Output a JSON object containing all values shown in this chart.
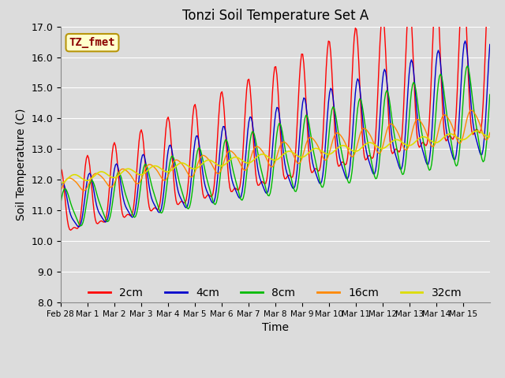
{
  "title": "Tonzi Soil Temperature Set A",
  "xlabel": "Time",
  "ylabel": "Soil Temperature (C)",
  "ylim": [
    8.0,
    17.0
  ],
  "yticks": [
    8.0,
    9.0,
    10.0,
    11.0,
    12.0,
    13.0,
    14.0,
    15.0,
    16.0,
    17.0
  ],
  "background_color": "#dcdcdc",
  "plot_bg_color": "#dcdcdc",
  "grid_color": "#ffffff",
  "annotation_text": "TZ_fmet",
  "annotation_color": "#8b0000",
  "annotation_bg": "#ffffcc",
  "annotation_border": "#b8960c",
  "colors": {
    "2cm": "#ff0000",
    "4cm": "#0000cc",
    "8cm": "#00bb00",
    "16cm": "#ff8800",
    "32cm": "#dddd00"
  },
  "legend_labels": [
    "2cm",
    "4cm",
    "8cm",
    "16cm",
    "32cm"
  ],
  "xtick_labels": [
    "Feb 28",
    "Mar 1",
    "Mar 2",
    "Mar 3",
    "Mar 4",
    "Mar 5",
    "Mar 6",
    "Mar 7",
    "Mar 8",
    "Mar 9",
    "Mar 10",
    "Mar 11",
    "Mar 12",
    "Mar 13",
    "Mar 14",
    "Mar 15"
  ]
}
